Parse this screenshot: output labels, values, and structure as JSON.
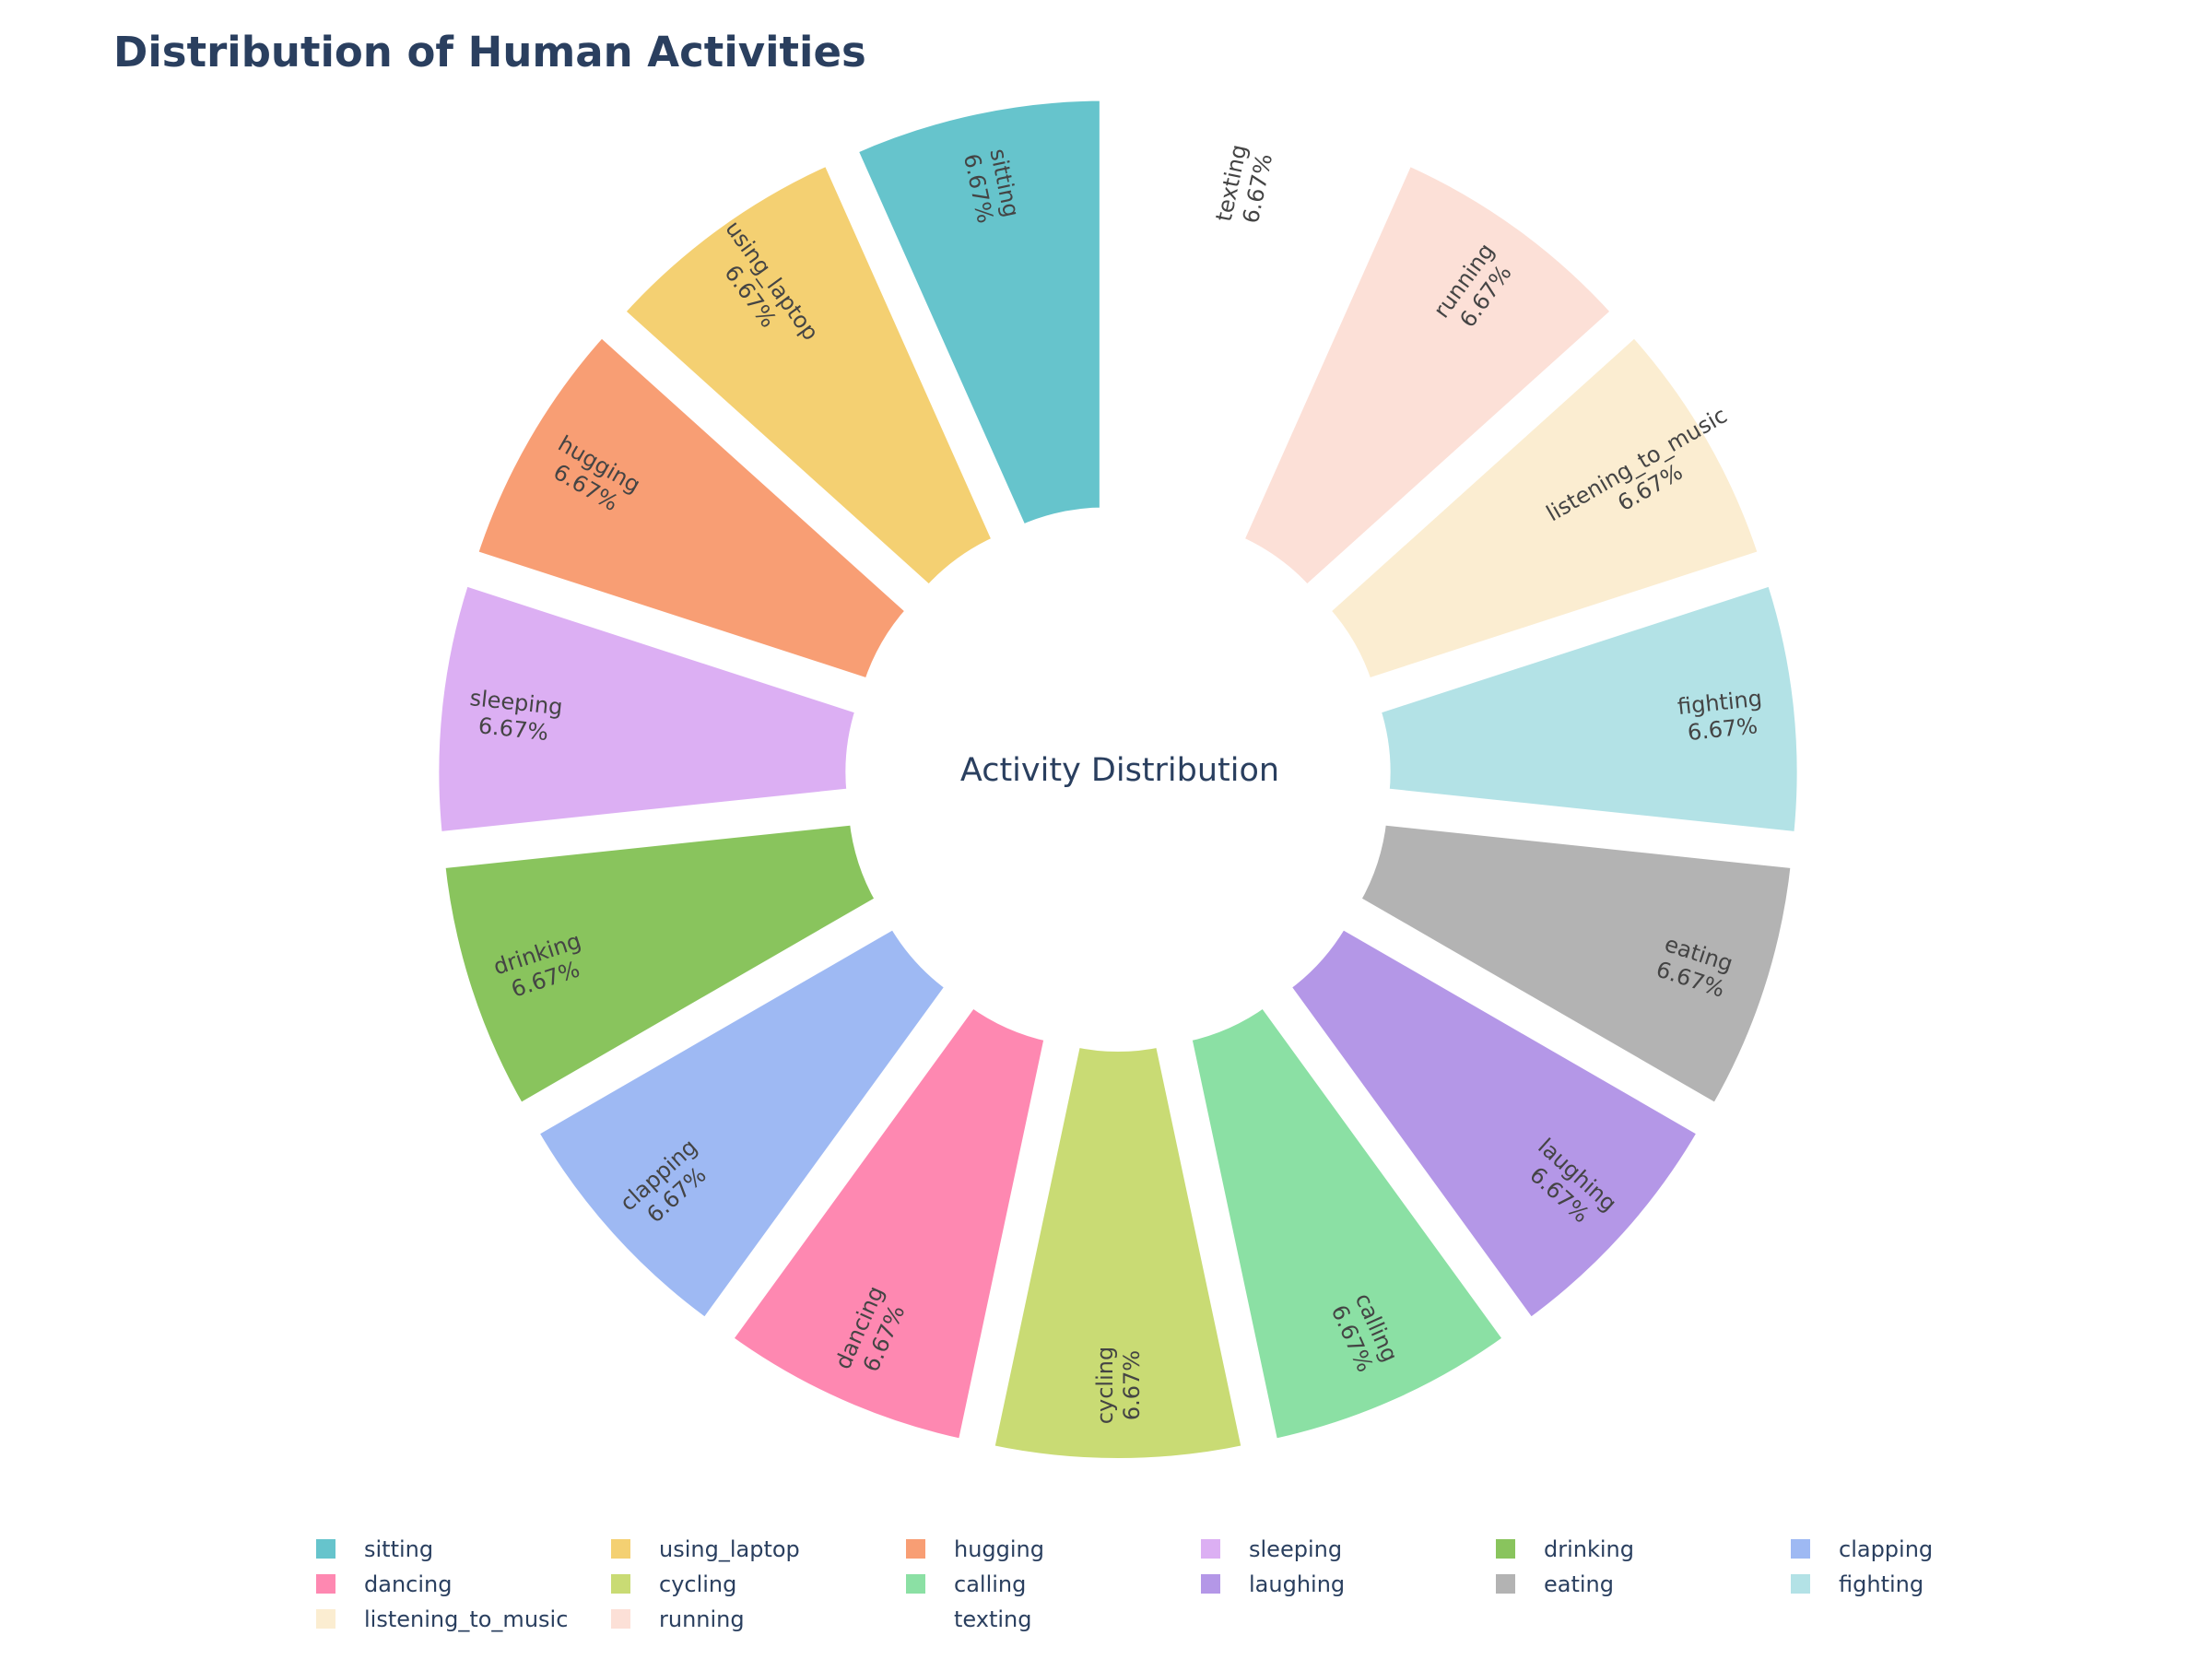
{
  "chart_data": {
    "type": "pie",
    "title": "Distribution of Human Activities",
    "center_label": "Activity Distribution",
    "hole": true,
    "slices_pulled_out": true,
    "legend_placement": "bottom",
    "slices": [
      {
        "label": "sitting",
        "percent": "6.67%",
        "value": 6.67,
        "color": "#66c4cc"
      },
      {
        "label": "using_laptop",
        "percent": "6.67%",
        "value": 6.67,
        "color": "#f4d072"
      },
      {
        "label": "hugging",
        "percent": "6.67%",
        "value": 6.67,
        "color": "#f89e74"
      },
      {
        "label": "sleeping",
        "percent": "6.67%",
        "value": 6.67,
        "color": "#dcaff3"
      },
      {
        "label": "drinking",
        "percent": "6.67%",
        "value": 6.67,
        "color": "#89c45d"
      },
      {
        "label": "clapping",
        "percent": "6.67%",
        "value": 6.67,
        "color": "#9eb9f3"
      },
      {
        "label": "dancing",
        "percent": "6.67%",
        "value": 6.67,
        "color": "#fe88b1"
      },
      {
        "label": "cycling",
        "percent": "6.67%",
        "value": 6.67,
        "color": "#c9db74"
      },
      {
        "label": "calling",
        "percent": "6.67%",
        "value": 6.67,
        "color": "#8be0a4"
      },
      {
        "label": "laughing",
        "percent": "6.67%",
        "value": 6.67,
        "color": "#b497e7"
      },
      {
        "label": "eating",
        "percent": "6.67%",
        "value": 6.67,
        "color": "#b3b3b3"
      },
      {
        "label": "fighting",
        "percent": "6.67%",
        "value": 6.67,
        "color": "#b3e2e6"
      },
      {
        "label": "listening_to_music",
        "percent": "6.67%",
        "value": 6.67,
        "color": "#fbedd1"
      },
      {
        "label": "running",
        "percent": "6.67%",
        "value": 6.67,
        "color": "#fce0d7"
      },
      {
        "label": "texting",
        "percent": "6.67%",
        "value": 6.67,
        "color": "#ffffff"
      }
    ]
  }
}
